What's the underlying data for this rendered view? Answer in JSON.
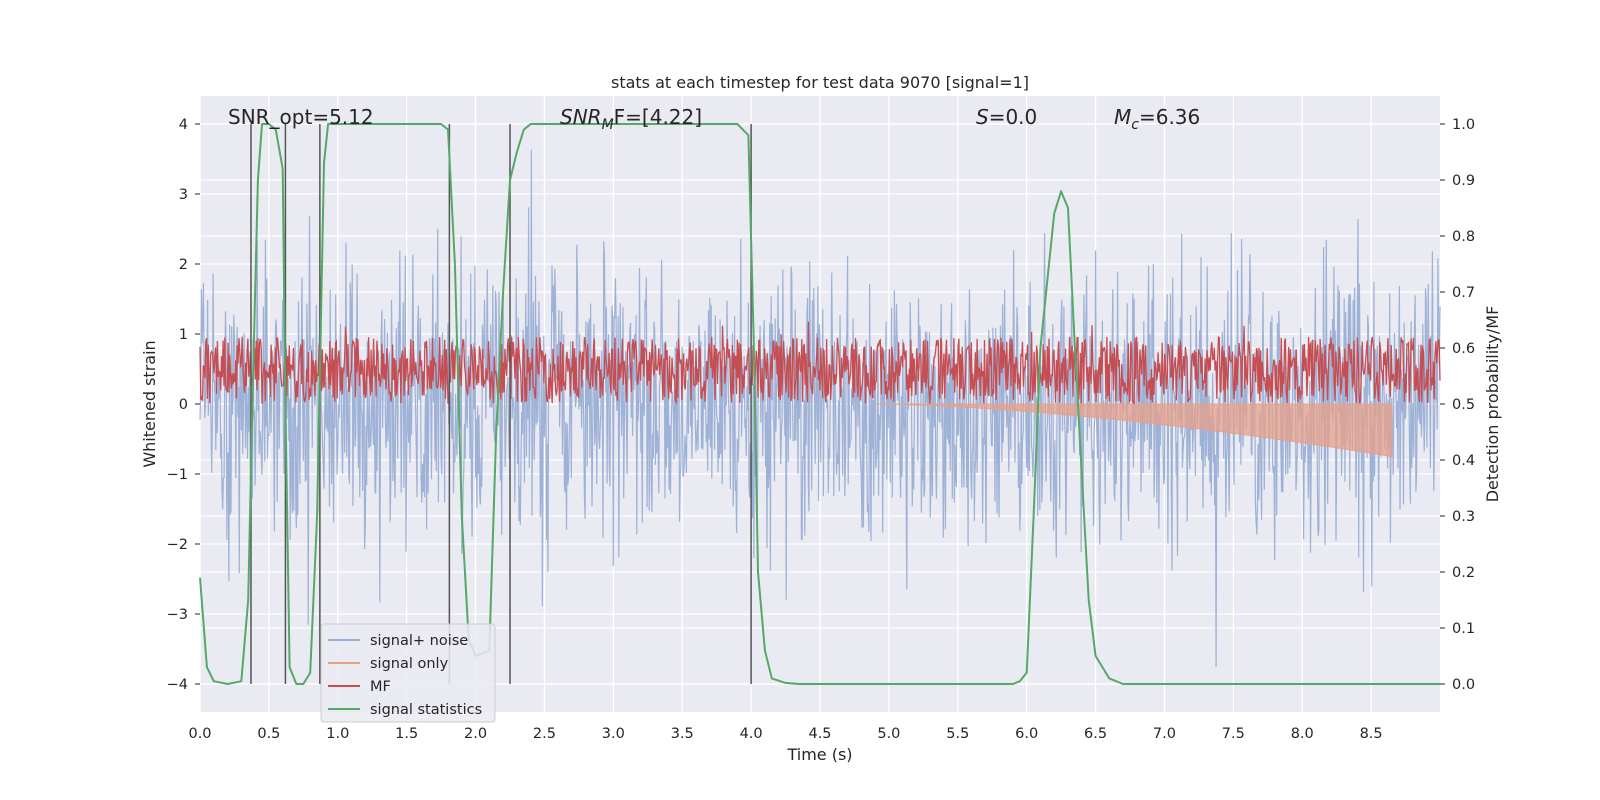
{
  "chart_data": {
    "type": "line",
    "title": "stats at each timestep for test data 9070 [signal=1]",
    "xlabel": "Time (s)",
    "ylabel_left": "Whitened strain",
    "ylabel_right": "Detection probability/MF",
    "xlim": [
      0,
      9
    ],
    "ylim_left": [
      -4.4,
      4.4
    ],
    "ylim_right": [
      -0.05,
      1.05
    ],
    "xticks": [
      "0.0",
      "0.5",
      "1.0",
      "1.5",
      "2.0",
      "2.5",
      "3.0",
      "3.5",
      "4.0",
      "4.5",
      "5.0",
      "5.5",
      "6.0",
      "6.5",
      "7.0",
      "7.5",
      "8.0",
      "8.5"
    ],
    "yticks_left": [
      "4",
      "3",
      "2",
      "1",
      "0",
      "−1",
      "−2",
      "−3",
      "−4"
    ],
    "yticks_right": [
      "1.0",
      "0.9",
      "0.8",
      "0.7",
      "0.6",
      "0.5",
      "0.4",
      "0.3",
      "0.2",
      "0.1",
      "0.0"
    ],
    "grid": true,
    "legend_position": "lower-left",
    "annotations": {
      "snr_opt": "SNR_opt=5.12",
      "snr_mf": "SNR",
      "snr_mf_sub": "M",
      "snr_mf_rest": "F=[4.22]",
      "s_label": "S",
      "s_value": "=0.0",
      "mc_label": "M",
      "mc_sub": "c",
      "mc_value": "=6.36"
    },
    "series": [
      {
        "name": "signal+ noise",
        "color": "#9aaed4",
        "axis": "left",
        "style": "noise band, amplitude roughly ±2.5, peaks to ±4"
      },
      {
        "name": "signal only",
        "color": "#e6a08a",
        "axis": "left",
        "style": "chirp",
        "start_s": 4.9,
        "end_s": 8.65,
        "peak_amplitude": -0.75
      },
      {
        "name": "MF",
        "color": "#c44e52",
        "axis": "right",
        "style": "noisy band",
        "range": [
          0.5,
          0.62
        ]
      },
      {
        "name": "signal statistics",
        "color": "#55a868",
        "axis": "right",
        "x": [
          0.0,
          0.05,
          0.1,
          0.2,
          0.3,
          0.35,
          0.38,
          0.42,
          0.45,
          0.5,
          0.55,
          0.6,
          0.62,
          0.65,
          0.7,
          0.75,
          0.8,
          0.85,
          0.9,
          0.93,
          0.96,
          1.0,
          1.5,
          1.75,
          1.8,
          1.85,
          1.9,
          1.95,
          2.0,
          2.1,
          2.15,
          2.2,
          2.25,
          2.3,
          2.35,
          2.4,
          2.5,
          3.0,
          3.5,
          3.9,
          3.98,
          4.02,
          4.05,
          4.1,
          4.15,
          4.25,
          4.35,
          5.0,
          5.9,
          5.95,
          6.0,
          6.05,
          6.1,
          6.2,
          6.25,
          6.3,
          6.35,
          6.45,
          6.5,
          6.6,
          6.7,
          7.0,
          9.0
        ],
        "y": [
          0.19,
          0.03,
          0.005,
          0.0,
          0.005,
          0.15,
          0.5,
          0.9,
          1.0,
          1.0,
          0.99,
          0.92,
          0.5,
          0.03,
          0.0,
          0.0,
          0.02,
          0.3,
          0.93,
          1.0,
          1.0,
          1.0,
          1.0,
          1.0,
          0.99,
          0.75,
          0.3,
          0.08,
          0.05,
          0.06,
          0.45,
          0.7,
          0.9,
          0.95,
          0.99,
          1.0,
          1.0,
          1.0,
          1.0,
          1.0,
          0.98,
          0.6,
          0.2,
          0.06,
          0.01,
          0.002,
          0.0,
          0.0,
          0.0,
          0.005,
          0.02,
          0.3,
          0.6,
          0.84,
          0.88,
          0.85,
          0.6,
          0.15,
          0.05,
          0.01,
          0.0,
          0.0,
          0.0
        ]
      }
    ],
    "vertical_markers_s": [
      0.37,
      0.62,
      0.87,
      1.81,
      2.25,
      4.0
    ]
  }
}
